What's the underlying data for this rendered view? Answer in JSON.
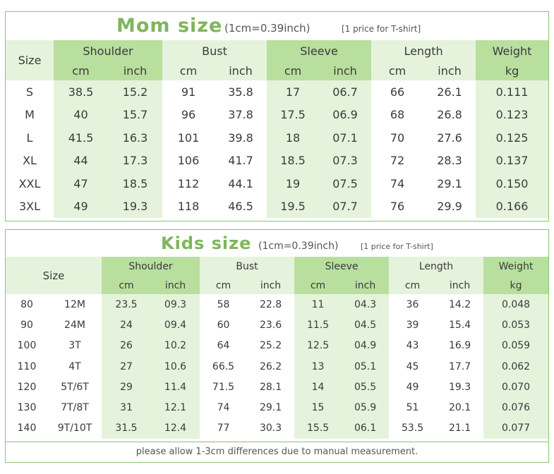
{
  "mom": {
    "title": "Mom size",
    "conversion": "(1cm=0.39inch)",
    "note": "[1 price for T-shirt]",
    "size_label": "Size",
    "groups": [
      "Shoulder",
      "Bust",
      "Sleeve",
      "Length",
      "Weight"
    ],
    "units": [
      "cm",
      "inch",
      "cm",
      "inch",
      "cm",
      "inch",
      "cm",
      "inch",
      "kg"
    ],
    "rows": [
      [
        "S",
        "38.5",
        "15.2",
        "91",
        "35.8",
        "17",
        "06.7",
        "66",
        "26.1",
        "0.111"
      ],
      [
        "M",
        "40",
        "15.7",
        "96",
        "37.8",
        "17.5",
        "06.9",
        "68",
        "26.8",
        "0.123"
      ],
      [
        "L",
        "41.5",
        "16.3",
        "101",
        "39.8",
        "18",
        "07.1",
        "70",
        "27.6",
        "0.125"
      ],
      [
        "XL",
        "44",
        "17.3",
        "106",
        "41.7",
        "18.5",
        "07.3",
        "72",
        "28.3",
        "0.137"
      ],
      [
        "XXL",
        "47",
        "18.5",
        "112",
        "44.1",
        "19",
        "07.5",
        "74",
        "29.1",
        "0.150"
      ],
      [
        "3XL",
        "49",
        "19.3",
        "118",
        "46.5",
        "19.5",
        "07.7",
        "76",
        "29.9",
        "0.166"
      ]
    ]
  },
  "kids": {
    "title": "Kids size",
    "conversion": "(1cm=0.39inch)",
    "note": "[1 price for T-shirt]",
    "size_label": "Size",
    "groups": [
      "Shoulder",
      "Bust",
      "Sleeve",
      "Length",
      "Weight"
    ],
    "units": [
      "cm",
      "inch",
      "cm",
      "inch",
      "cm",
      "inch",
      "cm",
      "inch",
      "kg"
    ],
    "rows": [
      [
        "80",
        "12M",
        "23.5",
        "09.3",
        "58",
        "22.8",
        "11",
        "04.3",
        "36",
        "14.2",
        "0.048"
      ],
      [
        "90",
        "24M",
        "24",
        "09.4",
        "60",
        "23.6",
        "11.5",
        "04.5",
        "39",
        "15.4",
        "0.053"
      ],
      [
        "100",
        "3T",
        "26",
        "10.2",
        "64",
        "25.2",
        "12.5",
        "04.9",
        "43",
        "16.9",
        "0.059"
      ],
      [
        "110",
        "4T",
        "27",
        "10.6",
        "66.5",
        "26.2",
        "13",
        "05.1",
        "45",
        "17.7",
        "0.062"
      ],
      [
        "120",
        "5T/6T",
        "29",
        "11.4",
        "71.5",
        "28.1",
        "14",
        "05.5",
        "49",
        "19.3",
        "0.070"
      ],
      [
        "130",
        "7T/8T",
        "31",
        "12.1",
        "74",
        "29.1",
        "15",
        "05.9",
        "51",
        "20.1",
        "0.076"
      ],
      [
        "140",
        "9T/10T",
        "31.5",
        "12.4",
        "77",
        "30.3",
        "15.5",
        "06.1",
        "53.5",
        "21.1",
        "0.077"
      ]
    ],
    "footer": "please allow 1-3cm differences due to manual measurement."
  }
}
